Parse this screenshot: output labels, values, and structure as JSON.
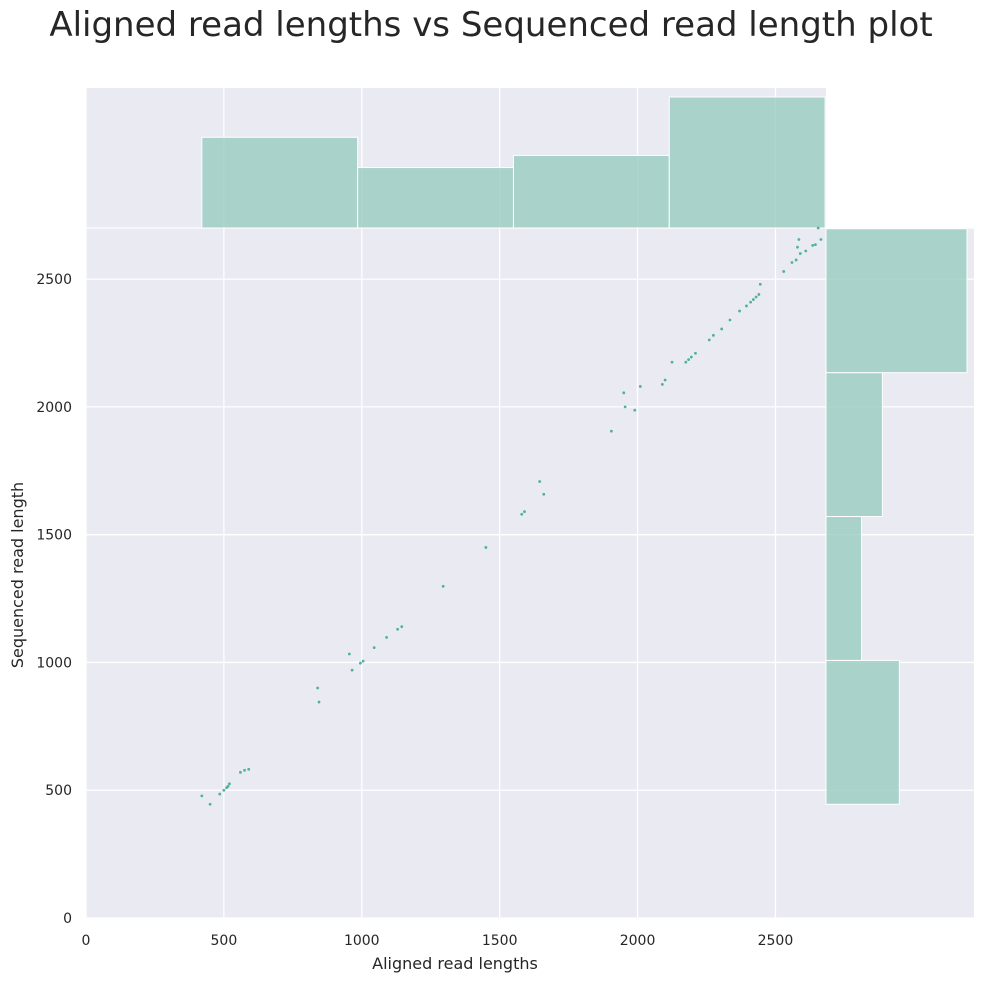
{
  "chart_data": {
    "type": "scatter",
    "title": "Aligned read lengths vs Sequenced read length plot",
    "xlabel": "Aligned read lengths",
    "ylabel": "Sequenced read length",
    "xlim": [
      0,
      3220
    ],
    "ylim": [
      0,
      2700
    ],
    "x_ticks": [
      0,
      500,
      1000,
      1500,
      2000,
      2500
    ],
    "y_ticks": [
      0,
      500,
      1000,
      1500,
      2000,
      2500
    ],
    "x_tick_labels": [
      "0",
      "500",
      "1000",
      "1500",
      "2000",
      "2500"
    ],
    "y_tick_labels": [
      "0",
      "500",
      "1000",
      "1500",
      "2000",
      "2500"
    ],
    "grid": true,
    "colors": {
      "point": "#4db39a",
      "hist": "#99ccbf",
      "background": "#eaeaf2",
      "grid": "#ffffff"
    },
    "points": [
      [
        420,
        478
      ],
      [
        450,
        445
      ],
      [
        485,
        485
      ],
      [
        500,
        500
      ],
      [
        510,
        510
      ],
      [
        515,
        515
      ],
      [
        520,
        525
      ],
      [
        560,
        570
      ],
      [
        575,
        578
      ],
      [
        590,
        582
      ],
      [
        840,
        900
      ],
      [
        845,
        845
      ],
      [
        955,
        1033
      ],
      [
        965,
        970
      ],
      [
        995,
        997
      ],
      [
        1005,
        1005
      ],
      [
        1045,
        1058
      ],
      [
        1090,
        1098
      ],
      [
        1130,
        1130
      ],
      [
        1145,
        1140
      ],
      [
        1295,
        1298
      ],
      [
        1450,
        1450
      ],
      [
        1580,
        1580
      ],
      [
        1590,
        1590
      ],
      [
        1645,
        1708
      ],
      [
        1660,
        1658
      ],
      [
        1905,
        1905
      ],
      [
        1950,
        2055
      ],
      [
        1955,
        2000
      ],
      [
        1990,
        1987
      ],
      [
        2010,
        2080
      ],
      [
        2090,
        2088
      ],
      [
        2100,
        2105
      ],
      [
        2125,
        2175
      ],
      [
        2175,
        2175
      ],
      [
        2185,
        2185
      ],
      [
        2195,
        2195
      ],
      [
        2210,
        2210
      ],
      [
        2260,
        2262
      ],
      [
        2275,
        2280
      ],
      [
        2305,
        2305
      ],
      [
        2335,
        2340
      ],
      [
        2370,
        2375
      ],
      [
        2395,
        2395
      ],
      [
        2410,
        2410
      ],
      [
        2420,
        2420
      ],
      [
        2430,
        2430
      ],
      [
        2440,
        2440
      ],
      [
        2445,
        2480
      ],
      [
        2530,
        2530
      ],
      [
        2560,
        2565
      ],
      [
        2575,
        2575
      ],
      [
        2580,
        2625
      ],
      [
        2590,
        2600
      ],
      [
        2585,
        2655
      ],
      [
        2610,
        2610
      ],
      [
        2635,
        2632
      ],
      [
        2645,
        2635
      ],
      [
        2655,
        2700
      ],
      [
        2665,
        2655
      ]
    ],
    "x_hist": {
      "edges": [
        420,
        985,
        1550,
        2115,
        2680
      ],
      "counts": [
        9,
        6,
        7.2,
        13
      ]
    },
    "y_hist": {
      "edges": [
        445,
        1008,
        1571,
        2134,
        2697
      ],
      "counts": [
        13,
        6.3,
        10,
        25
      ]
    }
  }
}
